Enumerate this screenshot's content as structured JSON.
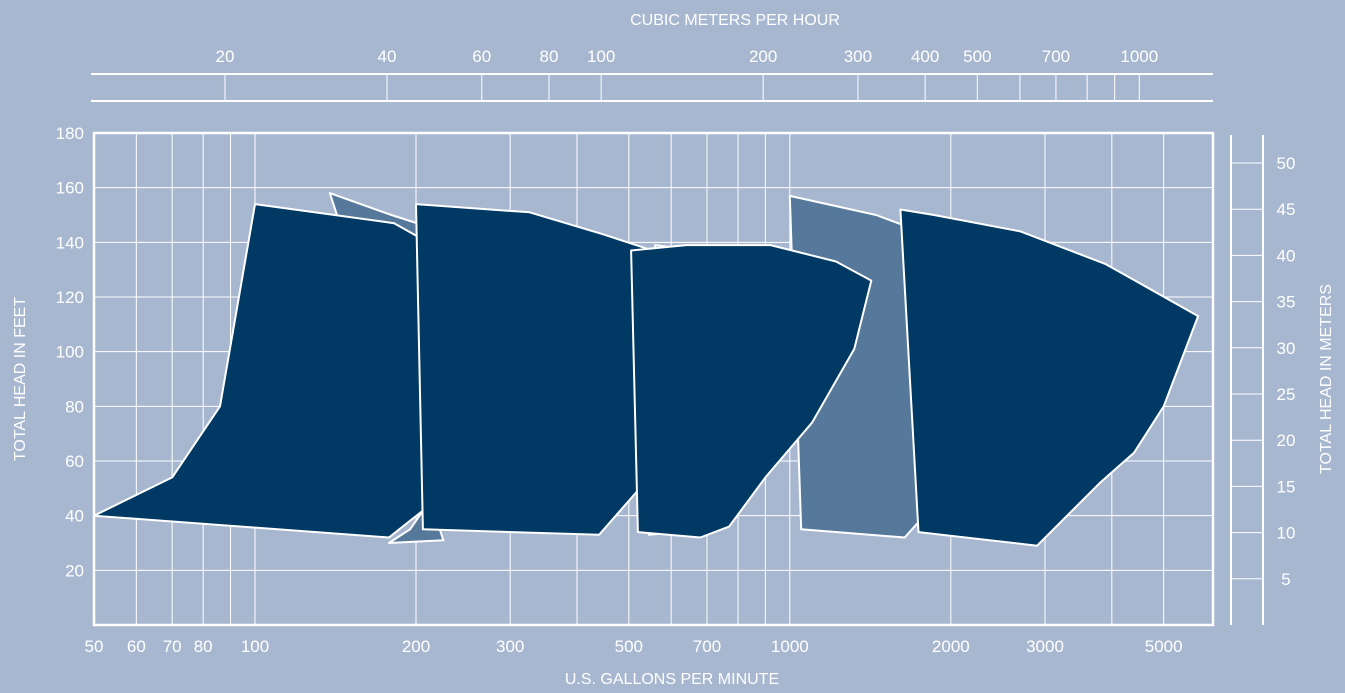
{
  "chart_data": {
    "type": "area",
    "x_axis": {
      "label": "U.S. GALLONS PER MINUTE",
      "scale": "log",
      "range": [
        50,
        6000
      ],
      "ticks": [
        50,
        60,
        70,
        80,
        100,
        200,
        300,
        500,
        700,
        1000,
        2000,
        3000,
        5000
      ],
      "tick_labels": [
        "50",
        "60",
        "70",
        "80",
        "100",
        "200",
        "300",
        "500",
        "700",
        "1000",
        "2000",
        "3000",
        "5000"
      ],
      "gridlines": [
        50,
        60,
        70,
        80,
        90,
        100,
        200,
        300,
        400,
        500,
        600,
        700,
        800,
        900,
        1000,
        2000,
        3000,
        4000,
        5000
      ]
    },
    "top_axis": {
      "label": "CUBIC METERS PER HOUR",
      "scale": "log",
      "ticks": [
        20,
        40,
        60,
        80,
        100,
        200,
        300,
        400,
        500,
        700,
        1000
      ],
      "tick_labels": [
        "20",
        "40",
        "60",
        "80",
        "100",
        "200",
        "300",
        "400",
        "500",
        "700",
        "1000"
      ],
      "minor_ticks": [
        600,
        800,
        900
      ]
    },
    "y_axis": {
      "label": "TOTAL HEAD IN FEET",
      "range": [
        0,
        180
      ],
      "ticks": [
        20,
        40,
        60,
        80,
        100,
        120,
        140,
        160,
        180
      ],
      "tick_labels": [
        "20",
        "40",
        "60",
        "80",
        "100",
        "120",
        "140",
        "160",
        "180"
      ]
    },
    "right_axis": {
      "label": "TOTAL HEAD IN METERS",
      "ticks": [
        5,
        10,
        15,
        20,
        25,
        30,
        35,
        40,
        45,
        50
      ],
      "tick_labels": [
        "5",
        "10",
        "15",
        "20",
        "25",
        "30",
        "35",
        "40",
        "45",
        "50"
      ]
    },
    "grid": true,
    "series": [
      {
        "shade": "light",
        "color": "#55789b",
        "points": [
          [
            138,
            158
          ],
          [
            180,
            150
          ],
          [
            232,
            143
          ],
          [
            285,
            136
          ],
          [
            340,
            126
          ],
          [
            328,
            115
          ],
          [
            270,
            75
          ],
          [
            195,
            35
          ],
          [
            178,
            30
          ],
          [
            225,
            31
          ]
        ]
      },
      {
        "shade": "light",
        "color": "#55789b",
        "points": [
          [
            560,
            139
          ],
          [
            720,
            136
          ],
          [
            990,
            122
          ],
          [
            950,
            110
          ],
          [
            790,
            69
          ],
          [
            575,
            37
          ],
          [
            545,
            33
          ],
          [
            630,
            34
          ]
        ]
      },
      {
        "shade": "light",
        "color": "#55789b",
        "points": [
          [
            1000,
            157
          ],
          [
            1450,
            150
          ],
          [
            2050,
            139
          ],
          [
            3300,
            122
          ],
          [
            2680,
            90
          ],
          [
            2300,
            70
          ],
          [
            1840,
            43
          ],
          [
            1640,
            32
          ],
          [
            1050,
            35
          ]
        ]
      },
      {
        "shade": "dark",
        "color": "#003963",
        "points": [
          [
            50,
            40
          ],
          [
            70,
            54
          ],
          [
            86,
            80
          ],
          [
            100,
            154
          ],
          [
            182,
            147
          ],
          [
            265,
            129
          ],
          [
            345,
            126
          ],
          [
            300,
            79
          ],
          [
            262,
            58
          ],
          [
            178,
            32
          ]
        ]
      },
      {
        "shade": "dark",
        "color": "#003963",
        "points": [
          [
            200,
            154
          ],
          [
            326,
            151
          ],
          [
            446,
            143
          ],
          [
            575,
            136
          ],
          [
            805,
            126
          ],
          [
            680,
            86
          ],
          [
            535,
            52
          ],
          [
            440,
            33
          ],
          [
            206,
            35
          ]
        ]
      },
      {
        "shade": "dark",
        "color": "#003963",
        "points": [
          [
            505,
            137
          ],
          [
            640,
            139
          ],
          [
            920,
            139
          ],
          [
            1220,
            133
          ],
          [
            1420,
            126
          ],
          [
            1320,
            101
          ],
          [
            1100,
            74
          ],
          [
            900,
            54
          ],
          [
            770,
            36
          ],
          [
            680,
            32
          ],
          [
            520,
            34
          ]
        ]
      },
      {
        "shade": "dark",
        "color": "#003963",
        "points": [
          [
            1610,
            152
          ],
          [
            1860,
            150
          ],
          [
            2700,
            144
          ],
          [
            3900,
            132
          ],
          [
            5800,
            113
          ],
          [
            5000,
            80
          ],
          [
            4400,
            63
          ],
          [
            3800,
            52
          ],
          [
            2900,
            29
          ],
          [
            1740,
            34
          ]
        ]
      }
    ]
  }
}
